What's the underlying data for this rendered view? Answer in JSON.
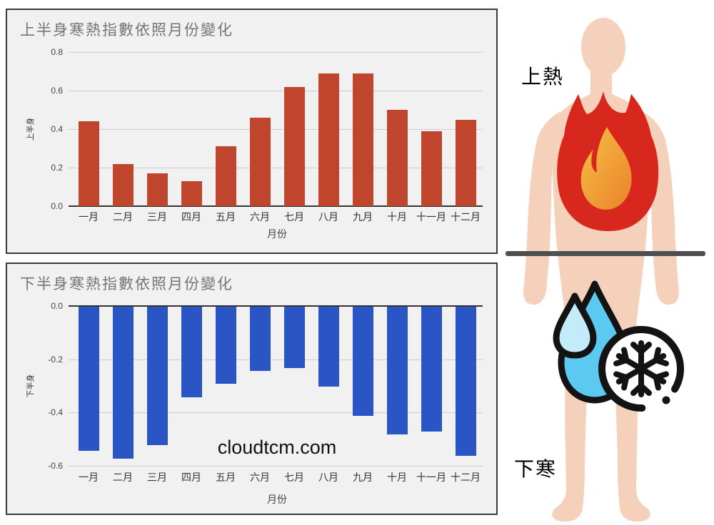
{
  "chart_data": [
    {
      "type": "bar",
      "title": "上半身寒熱指數依照月份變化",
      "xlabel": "月份",
      "ylabel": "上半身",
      "categories": [
        "一月",
        "二月",
        "三月",
        "四月",
        "五月",
        "六月",
        "七月",
        "八月",
        "九月",
        "十月",
        "十一月",
        "十二月"
      ],
      "values": [
        0.44,
        0.22,
        0.17,
        0.13,
        0.31,
        0.46,
        0.62,
        0.69,
        0.69,
        0.5,
        0.39,
        0.45
      ],
      "ylim": [
        0,
        0.8
      ],
      "yticks": [
        0.8,
        0.6,
        0.4,
        0.2,
        0.0
      ],
      "ytick_labels": [
        "0.8",
        "0.6",
        "0.4",
        "0.2",
        "0.0"
      ],
      "bar_color": "#bf452c",
      "grid": true,
      "legend": "none"
    },
    {
      "type": "bar",
      "title": "下半身寒熱指數依照月份變化",
      "xlabel": "月份",
      "ylabel": "下半身",
      "categories": [
        "一月",
        "二月",
        "三月",
        "四月",
        "五月",
        "六月",
        "七月",
        "八月",
        "九月",
        "十月",
        "十一月",
        "十二月"
      ],
      "values": [
        -0.54,
        -0.57,
        -0.52,
        -0.34,
        -0.29,
        -0.24,
        -0.23,
        -0.3,
        -0.41,
        -0.48,
        -0.47,
        -0.56
      ],
      "ylim": [
        -0.6,
        0
      ],
      "yticks": [
        0.0,
        -0.2,
        -0.4,
        -0.6
      ],
      "ytick_labels": [
        "0.0",
        "-0.2",
        "-0.4",
        "-0.6"
      ],
      "bar_color": "#2a55c5",
      "grid": true,
      "legend": "none",
      "watermark": "cloudtcm.com"
    }
  ],
  "illustration": {
    "upper_label": "上熱",
    "lower_label": "下寒",
    "skin_color": "#f5d0bb",
    "fire_red": "#d8271d",
    "fire_orange_dark": "#e8832b",
    "fire_orange_light": "#f7bf45",
    "drop_blue": "#5cc9f1",
    "drop_light_blue": "#c3ebfa",
    "outline_black": "#131313",
    "divider_color": "#4f4f4f"
  },
  "style": {
    "panel_background": "#f1f1f1",
    "panel_border": "#3a3a3a",
    "title_color": "#757575",
    "gridline_color": "#cccccc",
    "zeroline_color": "#333333"
  }
}
